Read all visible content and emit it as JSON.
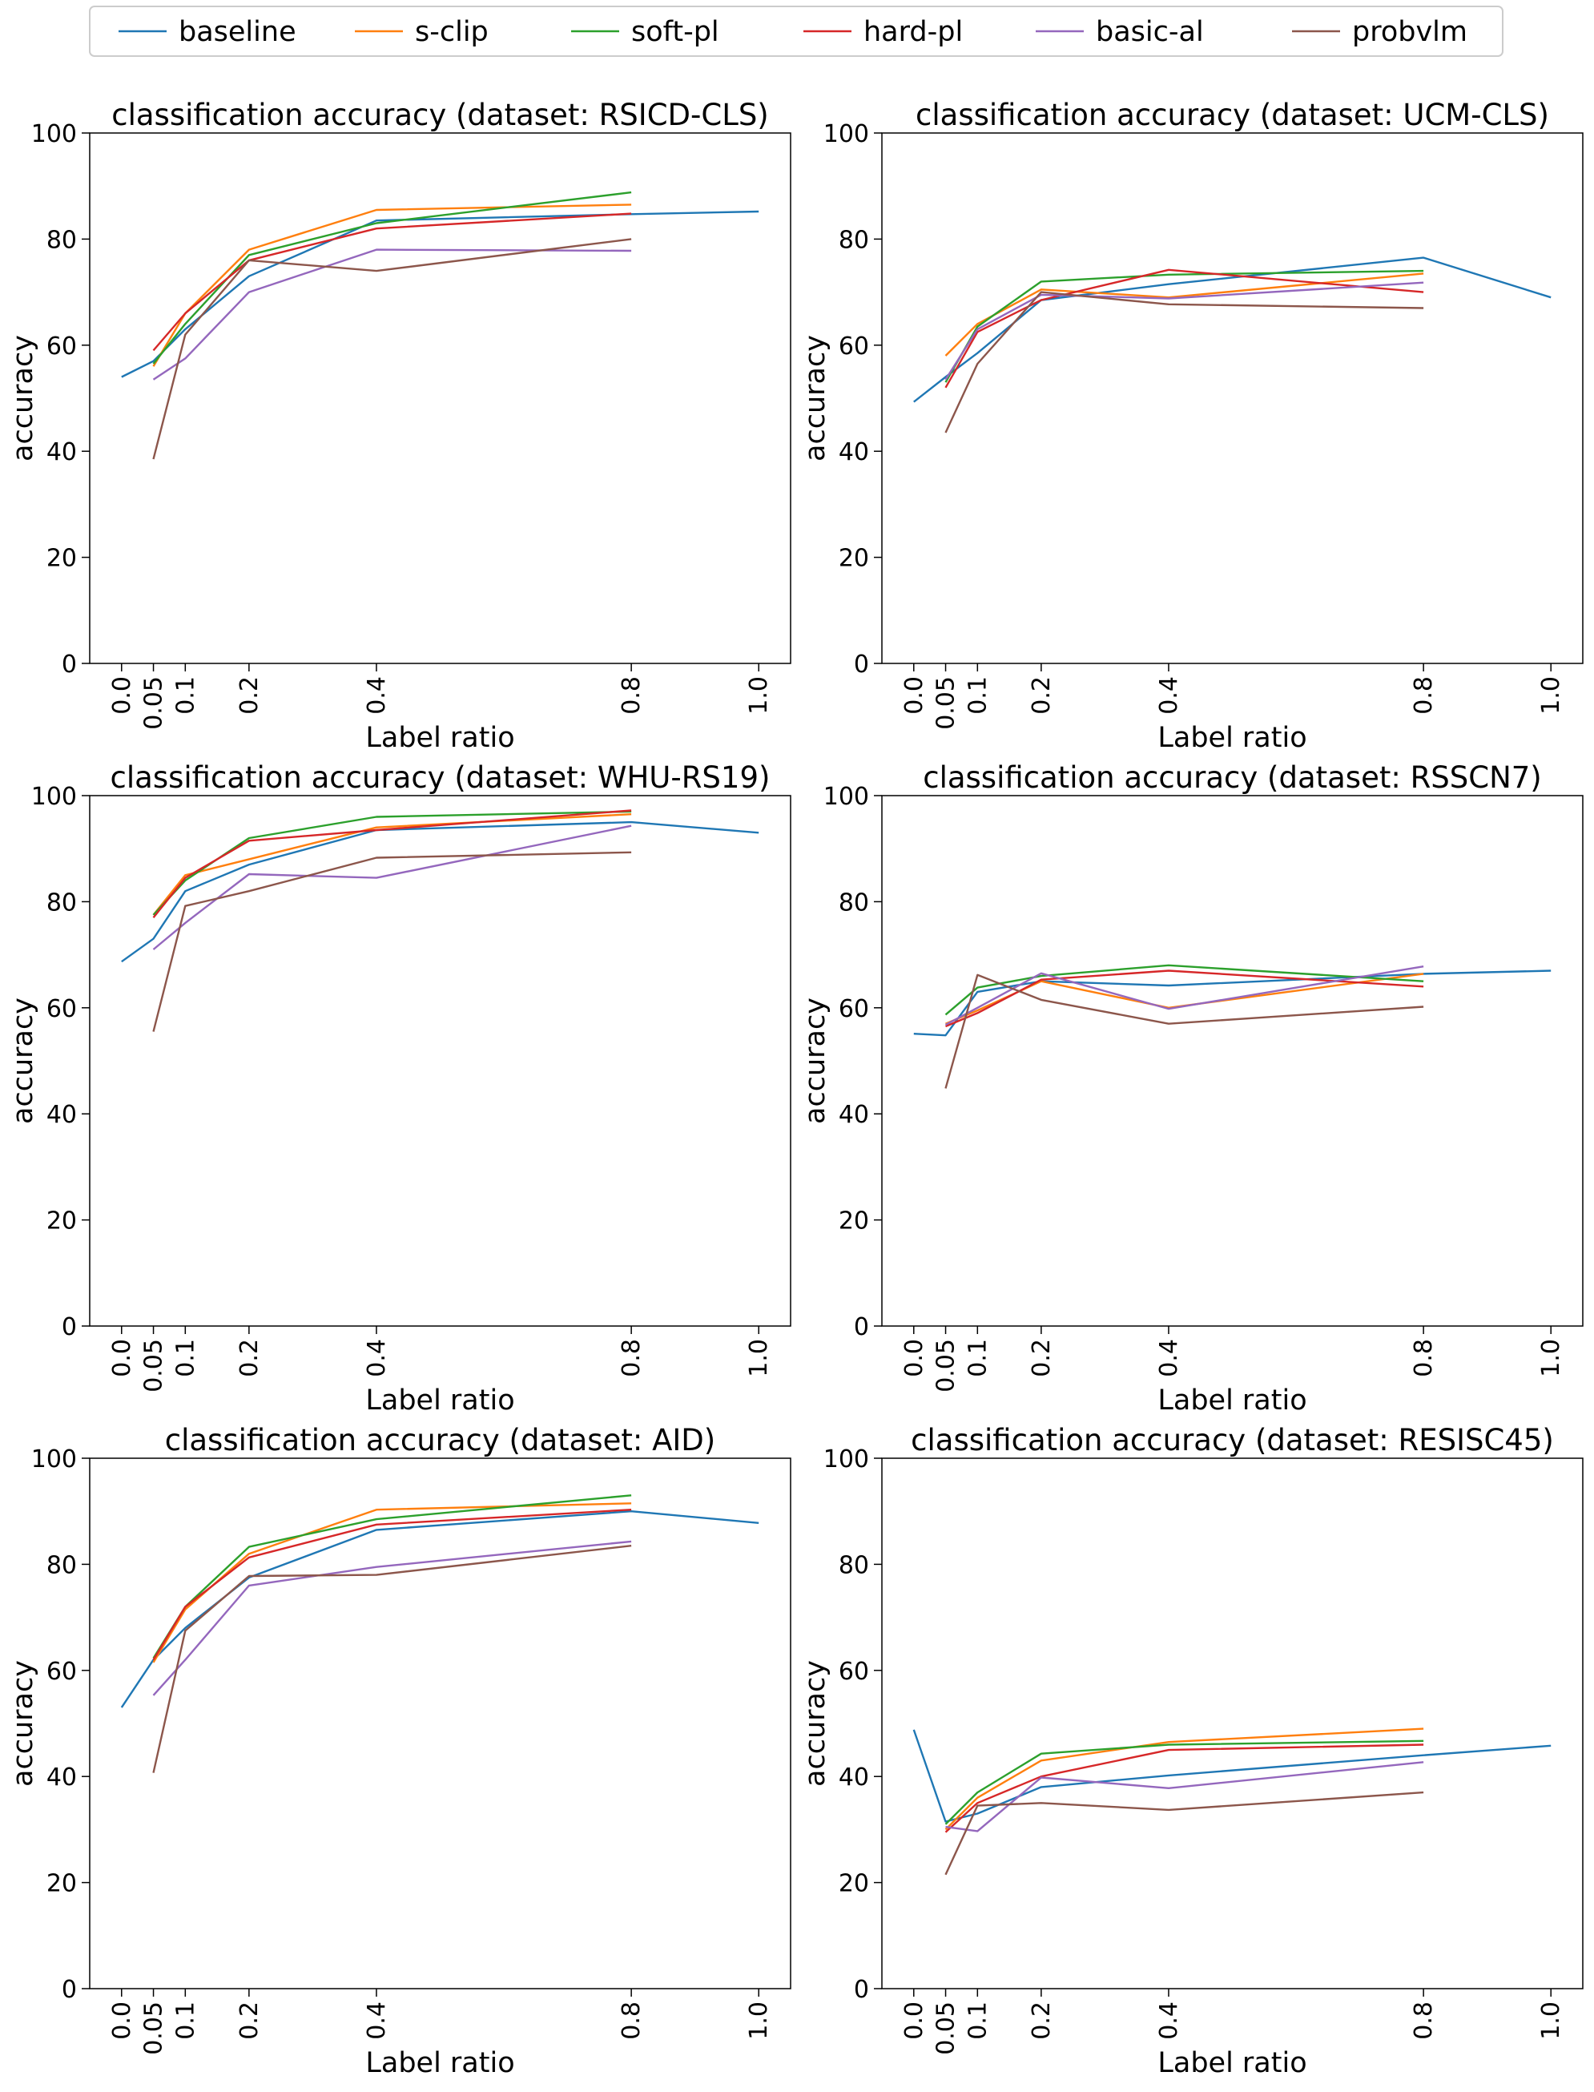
{
  "legend": {
    "entries": [
      {
        "name": "baseline",
        "color": "#1f77b4"
      },
      {
        "name": "s-clip",
        "color": "#ff7f0e"
      },
      {
        "name": "soft-pl",
        "color": "#2ca02c"
      },
      {
        "name": "hard-pl",
        "color": "#d62728"
      },
      {
        "name": "basic-al",
        "color": "#9467bd"
      },
      {
        "name": "probvlm",
        "color": "#8c564b"
      }
    ],
    "placement": "top-center"
  },
  "chart_data": [
    {
      "type": "line",
      "title": "classification accuracy (dataset: RSICD-CLS)",
      "xlabel": "Label ratio",
      "ylabel": "accuracy",
      "xlim": [
        -0.05,
        1.05
      ],
      "ylim": [
        0,
        100
      ],
      "xticks": [
        0.0,
        0.05,
        0.1,
        0.2,
        0.4,
        0.8,
        1.0
      ],
      "xtick_labels": [
        "0.0",
        "0.05",
        "0.1",
        "0.2",
        "0.4",
        "0.8",
        "1.0"
      ],
      "yticks": [
        0,
        20,
        40,
        60,
        80,
        100
      ],
      "ytick_labels": [
        "0",
        "20",
        "40",
        "60",
        "80",
        "100"
      ],
      "grid": false,
      "series": [
        {
          "name": "baseline",
          "color": "#1f77b4",
          "x": [
            0.0,
            0.05,
            0.1,
            0.2,
            0.4,
            0.8,
            1.0
          ],
          "y": [
            54,
            57,
            63,
            73,
            83.5,
            84.7,
            85.2
          ]
        },
        {
          "name": "s-clip",
          "color": "#ff7f0e",
          "x": [
            0.05,
            0.1,
            0.2,
            0.4,
            0.8
          ],
          "y": [
            56,
            66,
            78,
            85.5,
            86.5
          ]
        },
        {
          "name": "soft-pl",
          "color": "#2ca02c",
          "x": [
            0.05,
            0.1,
            0.2,
            0.4,
            0.8
          ],
          "y": [
            56.5,
            64,
            77,
            83,
            88.8
          ]
        },
        {
          "name": "hard-pl",
          "color": "#d62728",
          "x": [
            0.05,
            0.1,
            0.2,
            0.4,
            0.8
          ],
          "y": [
            59,
            66,
            76,
            82,
            84.8
          ]
        },
        {
          "name": "basic-al",
          "color": "#9467bd",
          "x": [
            0.05,
            0.1,
            0.2,
            0.4,
            0.8
          ],
          "y": [
            53.5,
            57.5,
            70,
            78,
            77.8
          ]
        },
        {
          "name": "probvlm",
          "color": "#8c564b",
          "x": [
            0.05,
            0.1,
            0.2,
            0.4,
            0.8
          ],
          "y": [
            38.5,
            62,
            76,
            74,
            80
          ]
        }
      ]
    },
    {
      "type": "line",
      "title": "classification accuracy (dataset: UCM-CLS)",
      "xlabel": "Label ratio",
      "ylabel": "accuracy",
      "xlim": [
        -0.05,
        1.05
      ],
      "ylim": [
        0,
        100
      ],
      "xticks": [
        0.0,
        0.05,
        0.1,
        0.2,
        0.4,
        0.8,
        1.0
      ],
      "xtick_labels": [
        "0.0",
        "0.05",
        "0.1",
        "0.2",
        "0.4",
        "0.8",
        "1.0"
      ],
      "yticks": [
        0,
        20,
        40,
        60,
        80,
        100
      ],
      "ytick_labels": [
        "0",
        "20",
        "40",
        "60",
        "80",
        "100"
      ],
      "grid": false,
      "series": [
        {
          "name": "baseline",
          "color": "#1f77b4",
          "x": [
            0.0,
            0.05,
            0.1,
            0.2,
            0.4,
            0.8,
            1.0
          ],
          "y": [
            49.3,
            54,
            58.5,
            68.5,
            71.5,
            76.5,
            69
          ]
        },
        {
          "name": "s-clip",
          "color": "#ff7f0e",
          "x": [
            0.05,
            0.1,
            0.2,
            0.4,
            0.8
          ],
          "y": [
            58,
            64,
            70.5,
            69,
            73.5
          ]
        },
        {
          "name": "soft-pl",
          "color": "#2ca02c",
          "x": [
            0.05,
            0.1,
            0.2,
            0.4,
            0.8
          ],
          "y": [
            53,
            63.5,
            72,
            73.3,
            74
          ]
        },
        {
          "name": "hard-pl",
          "color": "#d62728",
          "x": [
            0.05,
            0.1,
            0.2,
            0.4,
            0.8
          ],
          "y": [
            52,
            62.5,
            68.5,
            74.2,
            70
          ]
        },
        {
          "name": "basic-al",
          "color": "#9467bd",
          "x": [
            0.05,
            0.1,
            0.2,
            0.4,
            0.8
          ],
          "y": [
            53.5,
            63,
            69.5,
            68.8,
            71.8
          ]
        },
        {
          "name": "probvlm",
          "color": "#8c564b",
          "x": [
            0.05,
            0.1,
            0.2,
            0.4,
            0.8
          ],
          "y": [
            43.5,
            56.5,
            70,
            67.7,
            67
          ]
        }
      ]
    },
    {
      "type": "line",
      "title": "classification accuracy (dataset: WHU-RS19)",
      "xlabel": "Label ratio",
      "ylabel": "accuracy",
      "xlim": [
        -0.05,
        1.05
      ],
      "ylim": [
        0,
        100
      ],
      "xticks": [
        0.0,
        0.05,
        0.1,
        0.2,
        0.4,
        0.8,
        1.0
      ],
      "xtick_labels": [
        "0.0",
        "0.05",
        "0.1",
        "0.2",
        "0.4",
        "0.8",
        "1.0"
      ],
      "yticks": [
        0,
        20,
        40,
        60,
        80,
        100
      ],
      "ytick_labels": [
        "0",
        "20",
        "40",
        "60",
        "80",
        "100"
      ],
      "grid": false,
      "series": [
        {
          "name": "baseline",
          "color": "#1f77b4",
          "x": [
            0.0,
            0.05,
            0.1,
            0.2,
            0.4,
            0.8,
            1.0
          ],
          "y": [
            68.7,
            73,
            82,
            87,
            93.5,
            95,
            93
          ]
        },
        {
          "name": "s-clip",
          "color": "#ff7f0e",
          "x": [
            0.05,
            0.1,
            0.2,
            0.4,
            0.8
          ],
          "y": [
            77.5,
            85,
            88,
            94,
            96.5
          ]
        },
        {
          "name": "soft-pl",
          "color": "#2ca02c",
          "x": [
            0.05,
            0.1,
            0.2,
            0.4,
            0.8
          ],
          "y": [
            77.5,
            84,
            92,
            96,
            97
          ]
        },
        {
          "name": "hard-pl",
          "color": "#d62728",
          "x": [
            0.05,
            0.1,
            0.2,
            0.4,
            0.8
          ],
          "y": [
            77,
            84.5,
            91.5,
            93.5,
            97.2
          ]
        },
        {
          "name": "basic-al",
          "color": "#9467bd",
          "x": [
            0.05,
            0.1,
            0.2,
            0.4,
            0.8
          ],
          "y": [
            71,
            76,
            85.2,
            84.5,
            94.3
          ]
        },
        {
          "name": "probvlm",
          "color": "#8c564b",
          "x": [
            0.05,
            0.1,
            0.2,
            0.4,
            0.8
          ],
          "y": [
            55.5,
            79.2,
            82,
            88.3,
            89.3
          ]
        }
      ]
    },
    {
      "type": "line",
      "title": "classification accuracy (dataset: RSSCN7)",
      "xlabel": "Label ratio",
      "ylabel": "accuracy",
      "xlim": [
        -0.05,
        1.05
      ],
      "ylim": [
        0,
        100
      ],
      "xticks": [
        0.0,
        0.05,
        0.1,
        0.2,
        0.4,
        0.8,
        1.0
      ],
      "xtick_labels": [
        "0.0",
        "0.05",
        "0.1",
        "0.2",
        "0.4",
        "0.8",
        "1.0"
      ],
      "yticks": [
        0,
        20,
        40,
        60,
        80,
        100
      ],
      "ytick_labels": [
        "0",
        "20",
        "40",
        "60",
        "80",
        "100"
      ],
      "grid": false,
      "series": [
        {
          "name": "baseline",
          "color": "#1f77b4",
          "x": [
            0.0,
            0.05,
            0.1,
            0.2,
            0.4,
            0.8,
            1.0
          ],
          "y": [
            55.1,
            54.8,
            63,
            65,
            64.2,
            66.4,
            67
          ]
        },
        {
          "name": "s-clip",
          "color": "#ff7f0e",
          "x": [
            0.05,
            0.1,
            0.2,
            0.4,
            0.8
          ],
          "y": [
            57,
            59.5,
            65,
            60,
            66.4
          ]
        },
        {
          "name": "soft-pl",
          "color": "#2ca02c",
          "x": [
            0.05,
            0.1,
            0.2,
            0.4,
            0.8
          ],
          "y": [
            58.7,
            63.8,
            66,
            68,
            65
          ]
        },
        {
          "name": "hard-pl",
          "color": "#d62728",
          "x": [
            0.05,
            0.1,
            0.2,
            0.4,
            0.8
          ],
          "y": [
            56.5,
            59,
            65.3,
            67,
            64
          ]
        },
        {
          "name": "basic-al",
          "color": "#9467bd",
          "x": [
            0.05,
            0.1,
            0.2,
            0.4,
            0.8
          ],
          "y": [
            56.8,
            60,
            66.5,
            59.8,
            67.8
          ]
        },
        {
          "name": "probvlm",
          "color": "#8c564b",
          "x": [
            0.05,
            0.1,
            0.2,
            0.4,
            0.8
          ],
          "y": [
            44.8,
            66.2,
            61.5,
            57,
            60.2
          ]
        }
      ]
    },
    {
      "type": "line",
      "title": "classification accuracy (dataset: AID)",
      "xlabel": "Label ratio",
      "ylabel": "accuracy",
      "xlim": [
        -0.05,
        1.05
      ],
      "ylim": [
        0,
        100
      ],
      "xticks": [
        0.0,
        0.05,
        0.1,
        0.2,
        0.4,
        0.8,
        1.0
      ],
      "xtick_labels": [
        "0.0",
        "0.05",
        "0.1",
        "0.2",
        "0.4",
        "0.8",
        "1.0"
      ],
      "yticks": [
        0,
        20,
        40,
        60,
        80,
        100
      ],
      "ytick_labels": [
        "0",
        "20",
        "40",
        "60",
        "80",
        "100"
      ],
      "grid": false,
      "series": [
        {
          "name": "baseline",
          "color": "#1f77b4",
          "x": [
            0.0,
            0.05,
            0.1,
            0.2,
            0.4,
            0.8,
            1.0
          ],
          "y": [
            53,
            62,
            68,
            77.5,
            86.5,
            90,
            87.8
          ]
        },
        {
          "name": "s-clip",
          "color": "#ff7f0e",
          "x": [
            0.05,
            0.1,
            0.2,
            0.4,
            0.8
          ],
          "y": [
            61.5,
            71.5,
            82,
            90.3,
            91.5
          ]
        },
        {
          "name": "soft-pl",
          "color": "#2ca02c",
          "x": [
            0.05,
            0.1,
            0.2,
            0.4,
            0.8
          ],
          "y": [
            62.3,
            72,
            83.3,
            88.5,
            93
          ]
        },
        {
          "name": "hard-pl",
          "color": "#d62728",
          "x": [
            0.05,
            0.1,
            0.2,
            0.4,
            0.8
          ],
          "y": [
            62,
            72,
            81.3,
            87.5,
            90.3
          ]
        },
        {
          "name": "basic-al",
          "color": "#9467bd",
          "x": [
            0.05,
            0.1,
            0.2,
            0.4,
            0.8
          ],
          "y": [
            55.3,
            62,
            76,
            79.5,
            84.3
          ]
        },
        {
          "name": "probvlm",
          "color": "#8c564b",
          "x": [
            0.05,
            0.1,
            0.2,
            0.4,
            0.8
          ],
          "y": [
            40.7,
            67.5,
            77.8,
            78,
            83.5
          ]
        }
      ]
    },
    {
      "type": "line",
      "title": "classification accuracy (dataset: RESISC45)",
      "xlabel": "Label ratio",
      "ylabel": "accuracy",
      "xlim": [
        -0.05,
        1.05
      ],
      "ylim": [
        0,
        100
      ],
      "xticks": [
        0.0,
        0.05,
        0.1,
        0.2,
        0.4,
        0.8,
        1.0
      ],
      "xtick_labels": [
        "0.0",
        "0.05",
        "0.1",
        "0.2",
        "0.4",
        "0.8",
        "1.0"
      ],
      "yticks": [
        0,
        20,
        40,
        60,
        80,
        100
      ],
      "ytick_labels": [
        "0",
        "20",
        "40",
        "60",
        "80",
        "100"
      ],
      "grid": false,
      "series": [
        {
          "name": "baseline",
          "color": "#1f77b4",
          "x": [
            0.0,
            0.05,
            0.1,
            0.2,
            0.4,
            0.8,
            1.0
          ],
          "y": [
            48.8,
            31.5,
            33,
            38,
            40.2,
            44,
            45.8
          ]
        },
        {
          "name": "s-clip",
          "color": "#ff7f0e",
          "x": [
            0.05,
            0.1,
            0.2,
            0.4,
            0.8
          ],
          "y": [
            30,
            36,
            43,
            46.5,
            49
          ]
        },
        {
          "name": "soft-pl",
          "color": "#2ca02c",
          "x": [
            0.05,
            0.1,
            0.2,
            0.4,
            0.8
          ],
          "y": [
            31,
            37,
            44.3,
            46,
            46.7
          ]
        },
        {
          "name": "hard-pl",
          "color": "#d62728",
          "x": [
            0.05,
            0.1,
            0.2,
            0.4,
            0.8
          ],
          "y": [
            29.5,
            35,
            40,
            45,
            46
          ]
        },
        {
          "name": "basic-al",
          "color": "#9467bd",
          "x": [
            0.05,
            0.1,
            0.2,
            0.4,
            0.8
          ],
          "y": [
            30.5,
            29.7,
            39.8,
            37.8,
            42.7
          ]
        },
        {
          "name": "probvlm",
          "color": "#8c564b",
          "x": [
            0.05,
            0.1,
            0.2,
            0.4,
            0.8
          ],
          "y": [
            21.5,
            34.5,
            35,
            33.7,
            37
          ]
        }
      ]
    }
  ]
}
